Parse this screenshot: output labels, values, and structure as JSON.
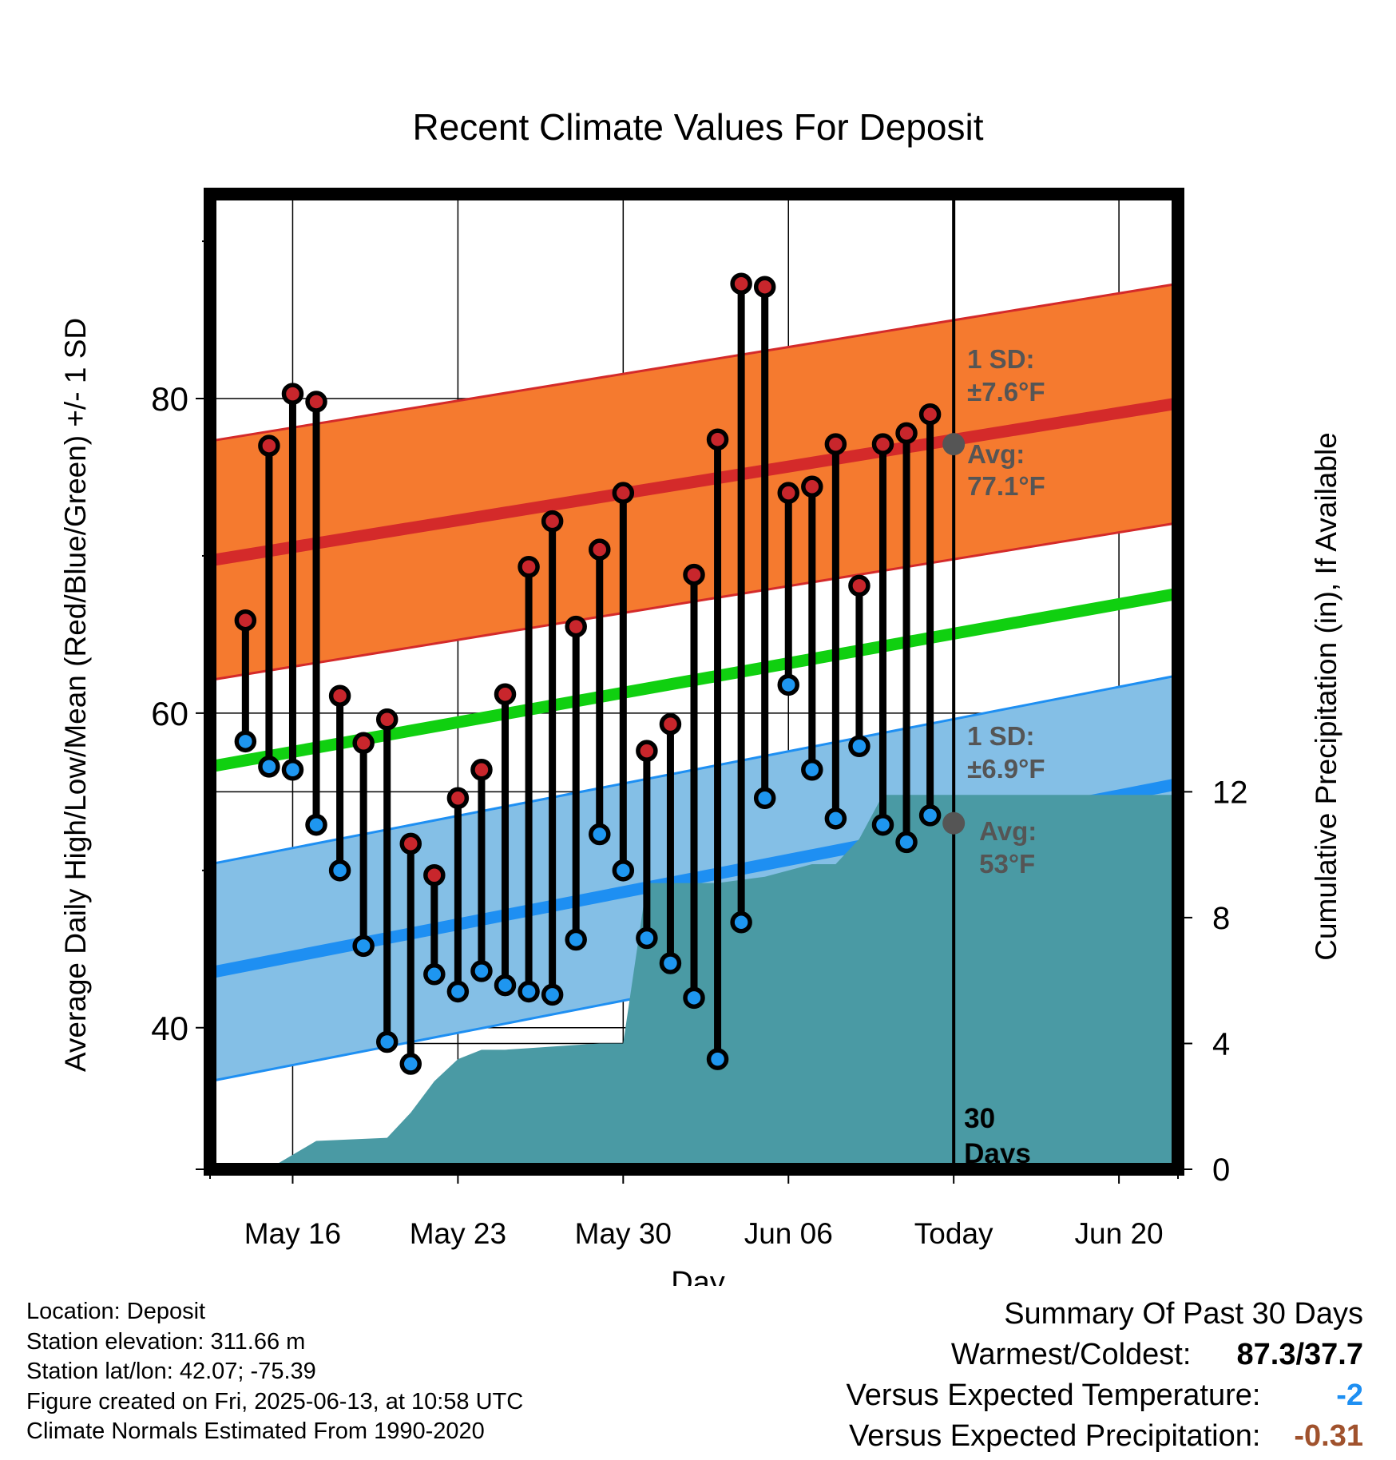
{
  "chart_data": {
    "type": "line",
    "title": "Recent Climate Values For Deposit",
    "xlabel": "Day",
    "ylabel": "Average Daily High/Low/Mean (Red/Blue/Green) +/- 1 SD",
    "y2label": "Cumulative Precipitation (in), If Available",
    "ylim": [
      31,
      93
    ],
    "y2lim": [
      0,
      31
    ],
    "xlim": [
      -3.5,
      37.5
    ],
    "x_tick_labels": [
      "May 16",
      "May 23",
      "May 30",
      "Jun 06",
      "Today",
      "Jun 20"
    ],
    "x_tick_positions": [
      0,
      7,
      14,
      21,
      28,
      35
    ],
    "y_ticks": [
      40,
      60,
      80
    ],
    "y2_ticks": [
      0,
      4,
      8,
      12
    ],
    "today_line_x": 28,
    "period_label": "30 Days",
    "days": [
      -2,
      -1,
      0,
      1,
      2,
      3,
      4,
      5,
      6,
      7,
      8,
      9,
      10,
      11,
      12,
      13,
      14,
      15,
      16,
      17,
      18,
      19,
      20,
      21,
      22,
      23,
      24,
      25,
      26,
      27
    ],
    "highs": [
      65.9,
      77.0,
      80.3,
      79.8,
      61.1,
      58.1,
      59.6,
      51.7,
      49.7,
      54.6,
      56.4,
      61.2,
      69.3,
      72.2,
      65.5,
      70.4,
      74.0,
      57.6,
      59.3,
      68.8,
      77.4,
      87.3,
      87.1,
      74.0,
      74.4,
      77.1,
      68.1,
      77.1,
      77.8,
      79.0
    ],
    "lows": [
      58.2,
      56.6,
      56.4,
      52.9,
      50.0,
      45.2,
      39.1,
      37.7,
      43.4,
      42.3,
      43.6,
      42.7,
      42.3,
      42.1,
      45.6,
      52.3,
      50.0,
      45.7,
      44.1,
      41.9,
      38.0,
      46.7,
      54.6,
      61.8,
      56.4,
      53.3,
      57.9,
      52.9,
      51.8,
      53.5
    ],
    "normal_high": {
      "start": 69.7,
      "end": 79.7,
      "sd": 7.6
    },
    "normal_low": {
      "start": 43.5,
      "end": 55.5,
      "sd": 6.9
    },
    "normal_mean": {
      "start": 56.6,
      "end": 67.6
    },
    "cumulative_precip": {
      "x": [
        -3.5,
        -1,
        1,
        4,
        5,
        6,
        7,
        8,
        9,
        10,
        11,
        12,
        13,
        14,
        15,
        16,
        17,
        18,
        19,
        20,
        21,
        22,
        23,
        24,
        25,
        26,
        37.5
      ],
      "y": [
        0,
        0.02,
        0.9,
        1.0,
        1.8,
        2.8,
        3.5,
        3.8,
        3.8,
        3.85,
        3.9,
        3.95,
        4.0,
        4.0,
        9.1,
        9.1,
        9.1,
        9.1,
        9.2,
        9.3,
        9.5,
        9.7,
        9.7,
        10.5,
        11.9,
        11.9,
        11.9
      ]
    },
    "annotations": {
      "high_sd": "1 SD:",
      "high_sd_val": "±7.6°F",
      "high_avg": "Avg:",
      "high_avg_val": "77.1°F",
      "low_sd": "1 SD:",
      "low_sd_val": "±6.9°F",
      "low_avg": "Avg:",
      "low_avg_val": "53°F",
      "today_high_avg": 77.1,
      "today_low_avg": 53.0
    },
    "colors": {
      "high_band": "#f57a2f",
      "high_line": "#d42a2a",
      "low_band": "#84bfe6",
      "low_line": "#1e8ff2",
      "mean_line": "#10d010",
      "precip": "#4a9aa4",
      "high_dot": "#c8262c",
      "low_dot": "#1e96f0",
      "annotation": "#555555"
    }
  },
  "footer": {
    "location": "Location: Deposit",
    "elevation": "Station elevation: 311.66 m",
    "latlon": "Station lat/lon: 42.07; -75.39",
    "created": "Figure created on Fri, 2025-06-13, at 10:58 UTC",
    "normals": "Climate Normals Estimated From 1990-2020"
  },
  "summary": {
    "heading": "Summary Of Past 30 Days",
    "warm_label": "Warmest/Coldest:",
    "warm_value": "87.3/37.7",
    "temp_label": "Versus Expected Temperature:",
    "temp_value": "-2",
    "temp_color": "#1e8ff2",
    "precip_label": "Versus Expected Precipitation:",
    "precip_value": "-0.31",
    "precip_color": "#a0522d"
  }
}
